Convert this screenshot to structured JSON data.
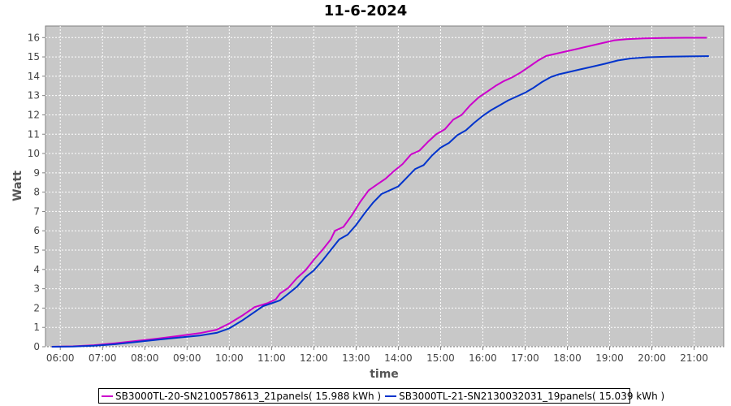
{
  "chart_data": {
    "type": "line",
    "title": "11-6-2024",
    "xlabel": "time",
    "ylabel": "Watt",
    "xlim": [
      5.65,
      21.7
    ],
    "ylim": [
      0,
      16.6
    ],
    "x_ticks": [
      "06:00",
      "07:00",
      "08:00",
      "09:00",
      "10:00",
      "11:00",
      "12:00",
      "13:00",
      "14:00",
      "15:00",
      "16:00",
      "17:00",
      "18:00",
      "19:00",
      "20:00",
      "21:00"
    ],
    "x_tick_values": [
      6,
      7,
      8,
      9,
      10,
      11,
      12,
      13,
      14,
      15,
      16,
      17,
      18,
      19,
      20,
      21
    ],
    "y_ticks": [
      0,
      1,
      2,
      3,
      4,
      5,
      6,
      7,
      8,
      9,
      10,
      11,
      12,
      13,
      14,
      15,
      16
    ],
    "grid": true,
    "background": "#c8c8c8",
    "legend_position": "bottom",
    "series": [
      {
        "name": "SB3000TL-20-SN2100578613_21panels( 15.988 kWh )",
        "color": "#cc00cc",
        "points": [
          [
            5.8,
            0
          ],
          [
            6.3,
            0.02
          ],
          [
            6.8,
            0.08
          ],
          [
            7.3,
            0.18
          ],
          [
            7.8,
            0.3
          ],
          [
            8.3,
            0.42
          ],
          [
            8.8,
            0.56
          ],
          [
            9.3,
            0.7
          ],
          [
            9.7,
            0.88
          ],
          [
            10.0,
            1.2
          ],
          [
            10.3,
            1.6
          ],
          [
            10.6,
            2.05
          ],
          [
            10.9,
            2.25
          ],
          [
            11.1,
            2.45
          ],
          [
            11.2,
            2.75
          ],
          [
            11.4,
            3.05
          ],
          [
            11.6,
            3.55
          ],
          [
            11.8,
            3.95
          ],
          [
            12.0,
            4.5
          ],
          [
            12.2,
            5.0
          ],
          [
            12.4,
            5.55
          ],
          [
            12.5,
            6.0
          ],
          [
            12.7,
            6.2
          ],
          [
            12.9,
            6.8
          ],
          [
            13.1,
            7.5
          ],
          [
            13.3,
            8.1
          ],
          [
            13.5,
            8.4
          ],
          [
            13.7,
            8.7
          ],
          [
            13.9,
            9.1
          ],
          [
            14.1,
            9.45
          ],
          [
            14.3,
            9.95
          ],
          [
            14.5,
            10.15
          ],
          [
            14.7,
            10.6
          ],
          [
            14.9,
            11.0
          ],
          [
            15.1,
            11.25
          ],
          [
            15.3,
            11.75
          ],
          [
            15.5,
            12.0
          ],
          [
            15.7,
            12.5
          ],
          [
            15.9,
            12.9
          ],
          [
            16.1,
            13.2
          ],
          [
            16.3,
            13.5
          ],
          [
            16.5,
            13.75
          ],
          [
            16.7,
            13.95
          ],
          [
            16.9,
            14.2
          ],
          [
            17.1,
            14.5
          ],
          [
            17.3,
            14.8
          ],
          [
            17.5,
            15.05
          ],
          [
            17.7,
            15.15
          ],
          [
            17.9,
            15.25
          ],
          [
            18.2,
            15.4
          ],
          [
            18.5,
            15.55
          ],
          [
            18.8,
            15.7
          ],
          [
            19.1,
            15.85
          ],
          [
            19.4,
            15.92
          ],
          [
            19.8,
            15.96
          ],
          [
            20.3,
            15.98
          ],
          [
            20.8,
            15.99
          ],
          [
            21.3,
            15.99
          ]
        ]
      },
      {
        "name": "SB3000TL-21-SN2130032031_19panels( 15.039 kWh )",
        "color": "#0033cc",
        "points": [
          [
            5.8,
            0
          ],
          [
            6.3,
            0.01
          ],
          [
            6.8,
            0.05
          ],
          [
            7.3,
            0.13
          ],
          [
            7.8,
            0.25
          ],
          [
            8.3,
            0.36
          ],
          [
            8.8,
            0.47
          ],
          [
            9.3,
            0.58
          ],
          [
            9.7,
            0.72
          ],
          [
            10.0,
            0.95
          ],
          [
            10.3,
            1.35
          ],
          [
            10.6,
            1.8
          ],
          [
            10.8,
            2.1
          ],
          [
            11.0,
            2.25
          ],
          [
            11.2,
            2.4
          ],
          [
            11.4,
            2.75
          ],
          [
            11.6,
            3.1
          ],
          [
            11.8,
            3.6
          ],
          [
            12.0,
            3.95
          ],
          [
            12.2,
            4.45
          ],
          [
            12.4,
            5.0
          ],
          [
            12.6,
            5.55
          ],
          [
            12.8,
            5.8
          ],
          [
            13.0,
            6.3
          ],
          [
            13.2,
            6.9
          ],
          [
            13.4,
            7.45
          ],
          [
            13.6,
            7.9
          ],
          [
            13.8,
            8.1
          ],
          [
            14.0,
            8.3
          ],
          [
            14.2,
            8.75
          ],
          [
            14.4,
            9.2
          ],
          [
            14.6,
            9.4
          ],
          [
            14.8,
            9.9
          ],
          [
            15.0,
            10.3
          ],
          [
            15.2,
            10.55
          ],
          [
            15.4,
            10.95
          ],
          [
            15.6,
            11.2
          ],
          [
            15.8,
            11.6
          ],
          [
            16.0,
            11.95
          ],
          [
            16.2,
            12.25
          ],
          [
            16.4,
            12.5
          ],
          [
            16.6,
            12.75
          ],
          [
            16.8,
            12.95
          ],
          [
            17.0,
            13.15
          ],
          [
            17.2,
            13.4
          ],
          [
            17.4,
            13.7
          ],
          [
            17.6,
            13.95
          ],
          [
            17.8,
            14.1
          ],
          [
            18.0,
            14.2
          ],
          [
            18.3,
            14.35
          ],
          [
            18.6,
            14.5
          ],
          [
            18.9,
            14.65
          ],
          [
            19.2,
            14.82
          ],
          [
            19.5,
            14.92
          ],
          [
            19.9,
            14.98
          ],
          [
            20.4,
            15.01
          ],
          [
            20.9,
            15.03
          ],
          [
            21.35,
            15.04
          ]
        ]
      }
    ]
  }
}
